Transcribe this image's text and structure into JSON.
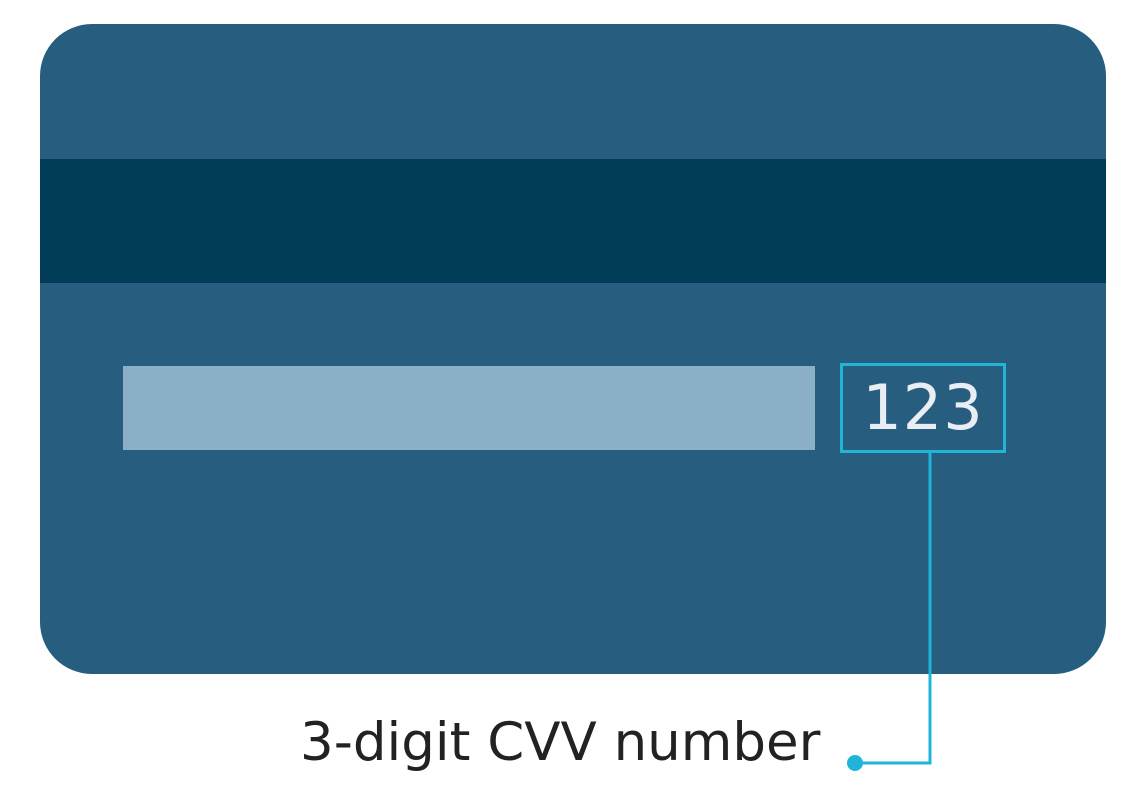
{
  "card": {
    "cvv_value": "123"
  },
  "caption": {
    "text": "3-digit CVV number"
  },
  "colors": {
    "card_body": "#275e80",
    "magnetic_stripe": "#003c58",
    "signature_strip": "#8aafc6",
    "callout_accent": "#1fb4d8",
    "caption_text": "#222222"
  }
}
